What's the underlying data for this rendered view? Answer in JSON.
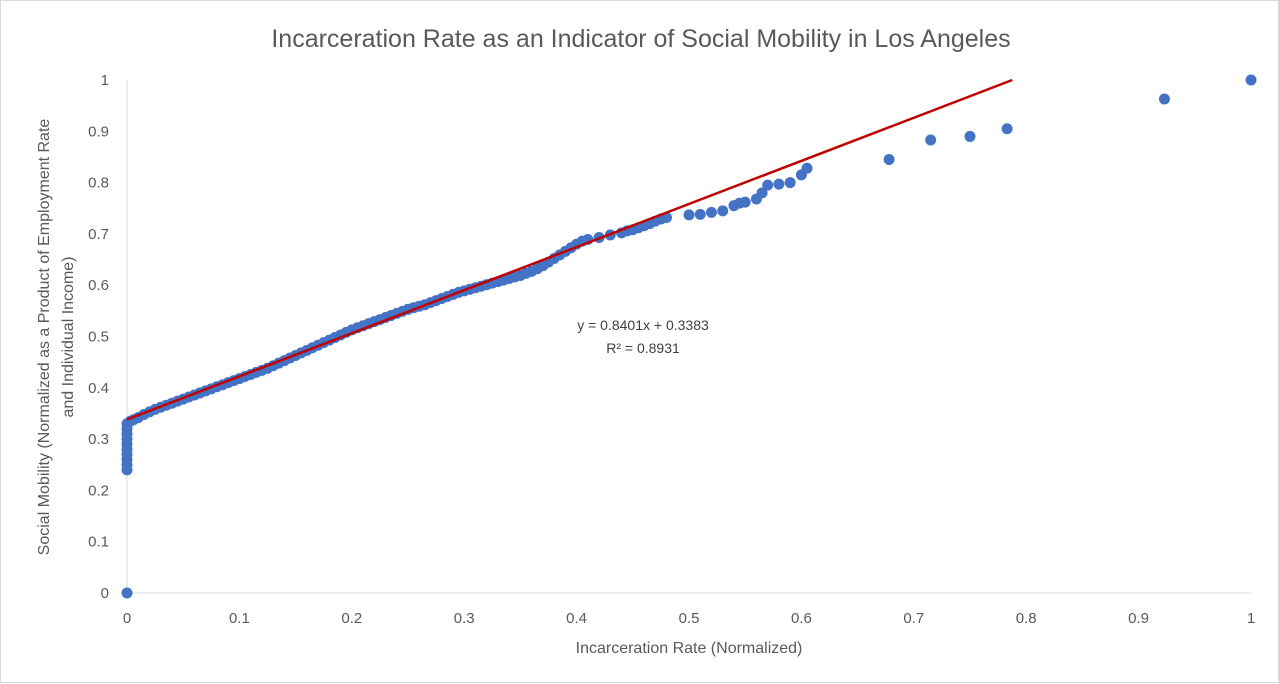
{
  "chart_data": {
    "type": "scatter",
    "title": "Incarceration Rate as an Indicator of Social Mobility in Los Angeles",
    "xlabel": "Incarceration Rate (Normalized)",
    "ylabel_lines": [
      "Social Mobility (Normalized as a Product of Employment Rate",
      "and Individual Income)"
    ],
    "xlim": [
      0,
      1
    ],
    "ylim": [
      0,
      1
    ],
    "xticks": [
      "0",
      "0.1",
      "0.2",
      "0.3",
      "0.4",
      "0.5",
      "0.6",
      "0.7",
      "0.8",
      "0.9",
      "1"
    ],
    "yticks": [
      "0",
      "0.1",
      "0.2",
      "0.3",
      "0.4",
      "0.5",
      "0.6",
      "0.7",
      "0.8",
      "0.9",
      "1"
    ],
    "grid": false,
    "point_color": "#4472c4",
    "trendline_color": "#c00000",
    "trendline": {
      "slope": 0.8401,
      "intercept": 0.3383,
      "equation_text": "y = 0.8401x + 0.3383",
      "r2_text": "R² = 0.8931"
    },
    "points": [
      [
        0,
        0
      ],
      [
        0,
        0.24
      ],
      [
        0,
        0.25
      ],
      [
        0,
        0.26
      ],
      [
        0,
        0.27
      ],
      [
        0,
        0.28
      ],
      [
        0,
        0.29
      ],
      [
        0,
        0.3
      ],
      [
        0,
        0.31
      ],
      [
        0,
        0.32
      ],
      [
        0,
        0.33
      ],
      [
        0.003,
        0.335
      ],
      [
        0.006,
        0.338
      ],
      [
        0.01,
        0.342
      ],
      [
        0.015,
        0.348
      ],
      [
        0.02,
        0.353
      ],
      [
        0.025,
        0.358
      ],
      [
        0.03,
        0.362
      ],
      [
        0.035,
        0.366
      ],
      [
        0.04,
        0.37
      ],
      [
        0.045,
        0.374
      ],
      [
        0.05,
        0.378
      ],
      [
        0.055,
        0.382
      ],
      [
        0.06,
        0.386
      ],
      [
        0.065,
        0.39
      ],
      [
        0.07,
        0.394
      ],
      [
        0.075,
        0.398
      ],
      [
        0.08,
        0.402
      ],
      [
        0.085,
        0.406
      ],
      [
        0.09,
        0.41
      ],
      [
        0.095,
        0.414
      ],
      [
        0.1,
        0.418
      ],
      [
        0.105,
        0.422
      ],
      [
        0.11,
        0.426
      ],
      [
        0.115,
        0.43
      ],
      [
        0.12,
        0.434
      ],
      [
        0.125,
        0.438
      ],
      [
        0.13,
        0.443
      ],
      [
        0.135,
        0.448
      ],
      [
        0.14,
        0.453
      ],
      [
        0.145,
        0.458
      ],
      [
        0.15,
        0.463
      ],
      [
        0.155,
        0.468
      ],
      [
        0.16,
        0.473
      ],
      [
        0.165,
        0.478
      ],
      [
        0.17,
        0.483
      ],
      [
        0.175,
        0.488
      ],
      [
        0.18,
        0.493
      ],
      [
        0.185,
        0.498
      ],
      [
        0.19,
        0.503
      ],
      [
        0.195,
        0.508
      ],
      [
        0.2,
        0.513
      ],
      [
        0.205,
        0.517
      ],
      [
        0.21,
        0.521
      ],
      [
        0.215,
        0.525
      ],
      [
        0.22,
        0.529
      ],
      [
        0.225,
        0.533
      ],
      [
        0.23,
        0.537
      ],
      [
        0.235,
        0.541
      ],
      [
        0.24,
        0.545
      ],
      [
        0.245,
        0.549
      ],
      [
        0.25,
        0.553
      ],
      [
        0.255,
        0.556
      ],
      [
        0.26,
        0.559
      ],
      [
        0.265,
        0.562
      ],
      [
        0.27,
        0.566
      ],
      [
        0.275,
        0.57
      ],
      [
        0.28,
        0.574
      ],
      [
        0.285,
        0.578
      ],
      [
        0.29,
        0.582
      ],
      [
        0.295,
        0.586
      ],
      [
        0.3,
        0.589
      ],
      [
        0.305,
        0.592
      ],
      [
        0.31,
        0.595
      ],
      [
        0.315,
        0.598
      ],
      [
        0.32,
        0.601
      ],
      [
        0.325,
        0.604
      ],
      [
        0.33,
        0.607
      ],
      [
        0.335,
        0.61
      ],
      [
        0.34,
        0.613
      ],
      [
        0.345,
        0.616
      ],
      [
        0.35,
        0.619
      ],
      [
        0.355,
        0.623
      ],
      [
        0.36,
        0.627
      ],
      [
        0.365,
        0.632
      ],
      [
        0.37,
        0.638
      ],
      [
        0.375,
        0.645
      ],
      [
        0.38,
        0.652
      ],
      [
        0.385,
        0.659
      ],
      [
        0.39,
        0.666
      ],
      [
        0.395,
        0.673
      ],
      [
        0.4,
        0.68
      ],
      [
        0.405,
        0.686
      ],
      [
        0.41,
        0.689
      ],
      [
        0.42,
        0.693
      ],
      [
        0.43,
        0.698
      ],
      [
        0.44,
        0.702
      ],
      [
        0.445,
        0.706
      ],
      [
        0.45,
        0.708
      ],
      [
        0.455,
        0.712
      ],
      [
        0.46,
        0.716
      ],
      [
        0.465,
        0.72
      ],
      [
        0.47,
        0.725
      ],
      [
        0.475,
        0.729
      ],
      [
        0.48,
        0.732
      ],
      [
        0.5,
        0.737
      ],
      [
        0.51,
        0.738
      ],
      [
        0.52,
        0.742
      ],
      [
        0.53,
        0.745
      ],
      [
        0.54,
        0.755
      ],
      [
        0.545,
        0.76
      ],
      [
        0.55,
        0.762
      ],
      [
        0.56,
        0.768
      ],
      [
        0.565,
        0.78
      ],
      [
        0.57,
        0.795
      ],
      [
        0.58,
        0.797
      ],
      [
        0.59,
        0.8
      ],
      [
        0.6,
        0.815
      ],
      [
        0.605,
        0.828
      ],
      [
        0.678,
        0.845
      ],
      [
        0.715,
        0.883
      ],
      [
        0.75,
        0.89
      ],
      [
        0.783,
        0.905
      ],
      [
        0.923,
        0.963
      ],
      [
        1.0,
        1.0
      ]
    ]
  }
}
